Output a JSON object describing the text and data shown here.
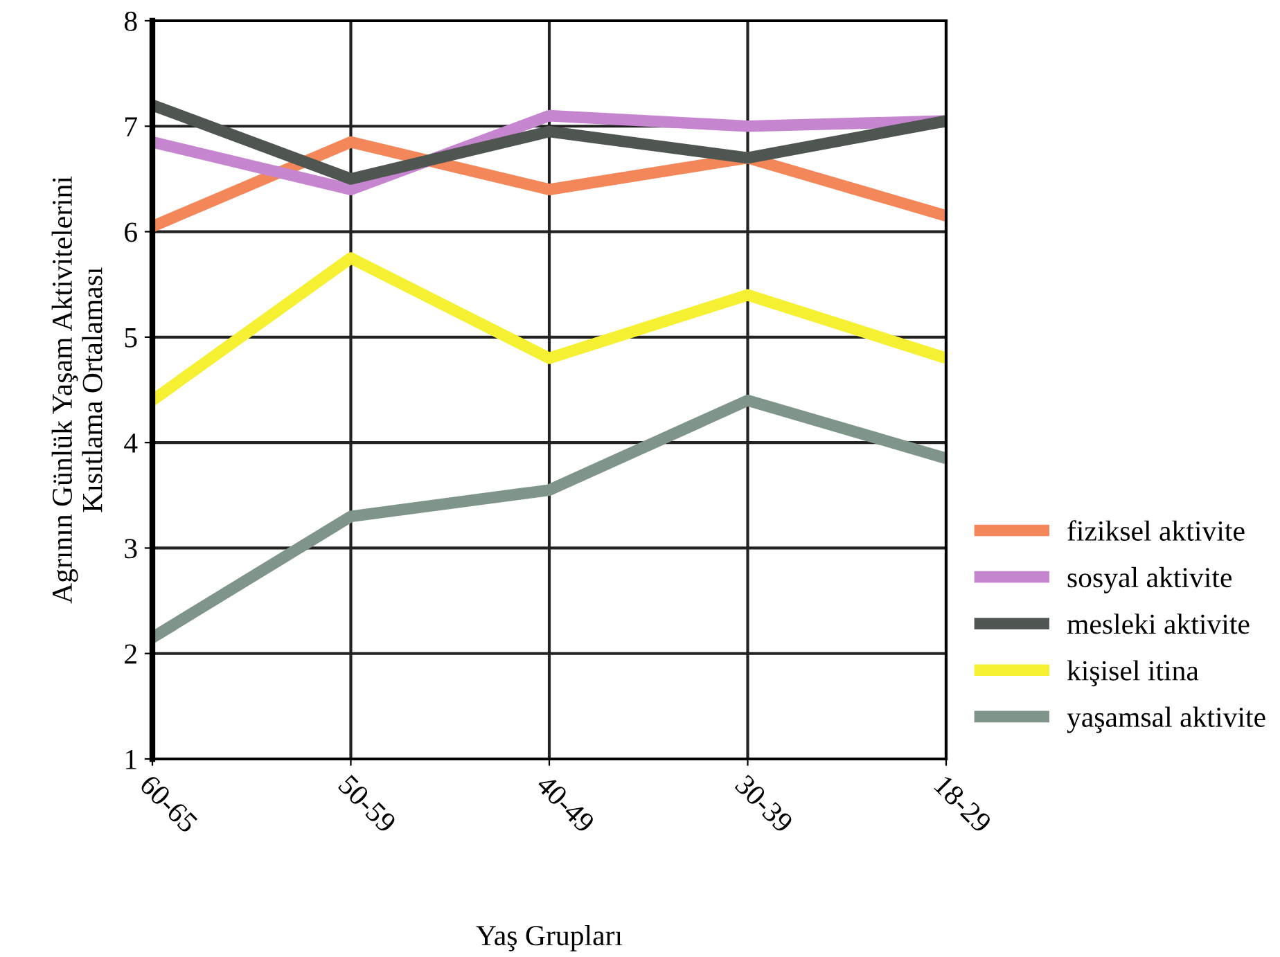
{
  "chart_data": {
    "type": "line",
    "xlabel": "Yaş Grupları",
    "ylabel": "Agrının Günlük Yaşam Aktivitelerini\nKısıtlama Ortalaması",
    "categories": [
      "60-65",
      "50-59",
      "40-49",
      "30-39",
      "18-29"
    ],
    "series": [
      {
        "name": "fiziksel aktivite",
        "color": "#f4875a",
        "values": [
          6.05,
          6.85,
          6.4,
          6.7,
          6.15
        ]
      },
      {
        "name": "sosyal aktivite",
        "color": "#c585cf",
        "values": [
          6.85,
          6.4,
          7.1,
          7.0,
          7.05
        ]
      },
      {
        "name": "mesleki aktivite",
        "color": "#4f5550",
        "values": [
          7.2,
          6.5,
          6.95,
          6.7,
          7.05
        ]
      },
      {
        "name": "kişisel itina",
        "color": "#f5f032",
        "values": [
          4.4,
          5.75,
          4.8,
          5.4,
          4.8
        ]
      },
      {
        "name": "yaşamsal aktivite",
        "color": "#7f958a",
        "values": [
          2.15,
          3.3,
          3.55,
          4.4,
          3.85
        ]
      }
    ],
    "ylim": [
      1,
      8
    ],
    "yticks": [
      1,
      2,
      3,
      4,
      5,
      6,
      7,
      8
    ],
    "grid": true,
    "legend": "right",
    "marker": "none",
    "line_style": "solid"
  }
}
